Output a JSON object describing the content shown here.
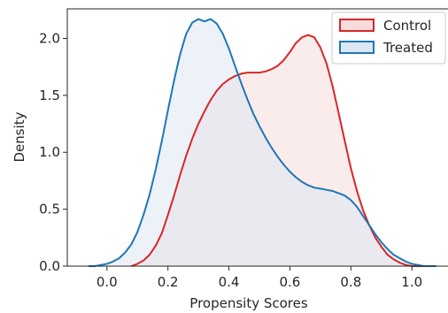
{
  "chart_data": {
    "type": "area",
    "xlabel": "Propensity Scores",
    "ylabel": "Density",
    "xlim": [
      -0.13,
      1.13
    ],
    "ylim": [
      0.0,
      2.26
    ],
    "x_ticks": [
      0.0,
      0.2,
      0.4,
      0.6,
      0.8,
      1.0
    ],
    "x_tick_labels": [
      "0.0",
      "0.2",
      "0.4",
      "0.6",
      "0.8",
      "1.0"
    ],
    "y_ticks": [
      0.0,
      0.5,
      1.0,
      1.5,
      2.0
    ],
    "y_tick_labels": [
      "0.0",
      "0.5",
      "1.0",
      "1.5",
      "2.0"
    ],
    "grid": false,
    "legend_position": "top-right",
    "series": [
      {
        "name": "Control",
        "color": "#d62728",
        "fill_color": "#f7dcdc",
        "x": [
          0.08,
          0.1,
          0.12,
          0.14,
          0.16,
          0.18,
          0.2,
          0.22,
          0.24,
          0.26,
          0.28,
          0.3,
          0.32,
          0.34,
          0.36,
          0.38,
          0.4,
          0.42,
          0.44,
          0.46,
          0.48,
          0.5,
          0.52,
          0.54,
          0.56,
          0.58,
          0.6,
          0.62,
          0.64,
          0.66,
          0.68,
          0.7,
          0.72,
          0.74,
          0.76,
          0.78,
          0.8,
          0.82,
          0.84,
          0.86,
          0.88,
          0.9,
          0.92,
          0.94,
          0.96,
          0.98,
          1.0,
          1.02,
          1.04
        ],
        "y": [
          0.0,
          0.02,
          0.05,
          0.1,
          0.18,
          0.29,
          0.45,
          0.62,
          0.8,
          0.97,
          1.12,
          1.25,
          1.36,
          1.46,
          1.54,
          1.6,
          1.64,
          1.67,
          1.69,
          1.7,
          1.7,
          1.7,
          1.71,
          1.73,
          1.76,
          1.81,
          1.88,
          1.96,
          2.01,
          2.03,
          2.01,
          1.92,
          1.78,
          1.58,
          1.34,
          1.1,
          0.86,
          0.66,
          0.49,
          0.36,
          0.25,
          0.17,
          0.1,
          0.06,
          0.03,
          0.01,
          0.0,
          0.0,
          0.0
        ]
      },
      {
        "name": "Treated",
        "color": "#1f77b4",
        "fill_color": "#dce7f3",
        "x": [
          -0.06,
          -0.04,
          -0.02,
          0.0,
          0.02,
          0.04,
          0.06,
          0.08,
          0.1,
          0.12,
          0.14,
          0.16,
          0.18,
          0.2,
          0.22,
          0.24,
          0.26,
          0.28,
          0.3,
          0.32,
          0.34,
          0.36,
          0.38,
          0.4,
          0.42,
          0.44,
          0.46,
          0.48,
          0.5,
          0.52,
          0.54,
          0.56,
          0.58,
          0.6,
          0.62,
          0.64,
          0.66,
          0.68,
          0.7,
          0.72,
          0.74,
          0.76,
          0.78,
          0.8,
          0.82,
          0.84,
          0.86,
          0.88,
          0.9,
          0.92,
          0.94,
          0.96,
          0.98,
          1.0,
          1.02,
          1.04,
          1.06,
          1.08
        ],
        "y": [
          0.0,
          0.0,
          0.01,
          0.02,
          0.04,
          0.07,
          0.12,
          0.19,
          0.3,
          0.45,
          0.63,
          0.85,
          1.1,
          1.37,
          1.63,
          1.86,
          2.04,
          2.14,
          2.17,
          2.15,
          2.17,
          2.13,
          2.04,
          1.91,
          1.76,
          1.61,
          1.47,
          1.34,
          1.23,
          1.13,
          1.04,
          0.96,
          0.89,
          0.83,
          0.78,
          0.74,
          0.71,
          0.69,
          0.68,
          0.67,
          0.66,
          0.64,
          0.62,
          0.58,
          0.52,
          0.44,
          0.36,
          0.28,
          0.21,
          0.15,
          0.1,
          0.07,
          0.04,
          0.02,
          0.01,
          0.0,
          0.0,
          0.0
        ]
      }
    ]
  }
}
